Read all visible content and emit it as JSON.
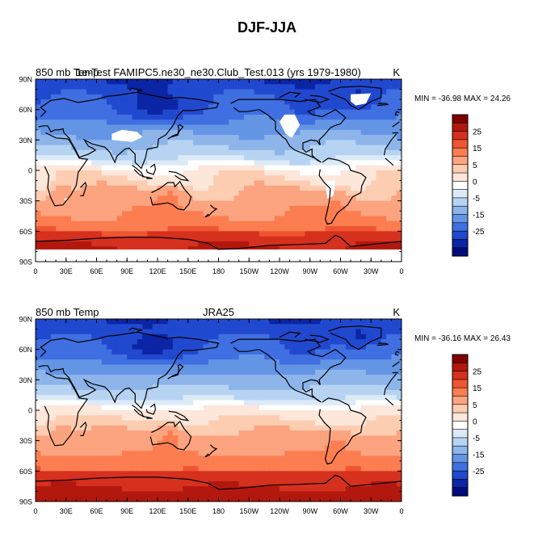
{
  "figure_title": "DJF-JJA",
  "panels": [
    {
      "left_label": "850 mb Temp",
      "center_label": "1e-Test FAMIPC5.ne30_ne30.Club_Test.013 (yrs 1979-1980)",
      "units": "K",
      "stats": "MIN = -36.98 MAX =  24.26",
      "has_missing_land": true
    },
    {
      "left_label": "850 mb Temp",
      "center_label": "JRA25",
      "units": "K",
      "stats": "MIN = -36.16 MAX =  26.43",
      "has_missing_land": false
    }
  ],
  "axis": {
    "lat_ticks": [
      "90N",
      "60N",
      "30N",
      "0",
      "30S",
      "60S",
      "90S"
    ],
    "lon_ticks": [
      "0",
      "30E",
      "60E",
      "90E",
      "120E",
      "150E",
      "180",
      "150W",
      "120W",
      "90W",
      "60W",
      "30W",
      "0"
    ]
  },
  "colorbar": {
    "labels": [
      "25",
      "15",
      "5",
      "0",
      "-5",
      "-15",
      "-25"
    ],
    "colors_top_to_bottom": [
      "#7f0000",
      "#b2180e",
      "#d6301e",
      "#ee5530",
      "#fb7d50",
      "#fca37f",
      "#fdcdb2",
      "#fde6da",
      "#ffffff",
      "#dceaf8",
      "#b6d3f2",
      "#8db5ea",
      "#6495e5",
      "#3f6fe0",
      "#2149cf",
      "#0b25a5",
      "#000b7c"
    ]
  },
  "missing_color": "#ffffff"
}
